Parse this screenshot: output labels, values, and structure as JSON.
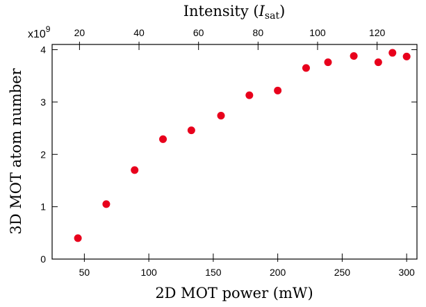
{
  "chart_data": {
    "type": "scatter",
    "xlabel": "2D MOT power (mW)",
    "ylabel": "3D MOT atom number",
    "x2label": {
      "text": "Intensity (",
      "symbol": "I",
      "subscript": "sat",
      "close": ")"
    },
    "y_multiplier": {
      "base": "x10",
      "exponent": "9"
    },
    "xlim": [
      25,
      308
    ],
    "ylim": [
      0,
      4.1
    ],
    "x2lim": [
      10.8,
      133.4
    ],
    "x_ticks": [
      50,
      100,
      150,
      200,
      250,
      300
    ],
    "y_ticks": [
      0,
      1,
      2,
      3,
      4
    ],
    "x2_ticks": [
      20,
      40,
      60,
      80,
      100,
      120
    ],
    "grid": false,
    "marker_color": "#e8001c",
    "series": [
      {
        "x": [
          45,
          67,
          89,
          111,
          133,
          156,
          178,
          200,
          222,
          239,
          259,
          278,
          289,
          300
        ],
        "y": [
          0.4,
          1.05,
          1.7,
          2.29,
          2.46,
          2.74,
          3.13,
          3.22,
          3.65,
          3.76,
          3.88,
          3.76,
          3.94,
          3.87
        ]
      }
    ]
  }
}
